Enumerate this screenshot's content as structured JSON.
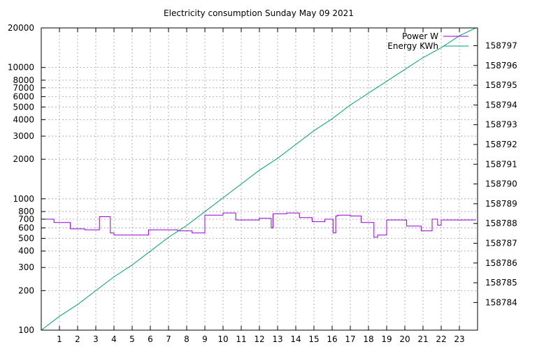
{
  "chart_data": {
    "type": "line",
    "title": "Electricity consumption Sunday May 09 2021",
    "x_ticks": [
      "1",
      "2",
      "3",
      "4",
      "5",
      "6",
      "7",
      "8",
      "9",
      "10",
      "11",
      "12",
      "13",
      "14",
      "15",
      "16",
      "17",
      "18",
      "19",
      "20",
      "21",
      "22",
      "23"
    ],
    "xlim": [
      0,
      24
    ],
    "y_left": {
      "scale": "log",
      "lim": [
        100,
        20000
      ],
      "tick_labels": [
        "100",
        "200",
        "300",
        "400",
        "500",
        "600",
        "700",
        "800",
        "1000",
        "2000",
        "3000",
        "4000",
        "5000",
        "6000",
        "7000",
        "8000",
        "10000",
        "20000"
      ]
    },
    "y_right": {
      "scale": "linear",
      "lim": [
        158782.6,
        158797.9
      ],
      "tick_labels": [
        "158784",
        "158785",
        "158786",
        "158787",
        "158788",
        "158789",
        "158790",
        "158791",
        "158792",
        "158793",
        "158794",
        "158795",
        "158796",
        "158797"
      ]
    },
    "grid": true,
    "legend_position": "top-right",
    "colors": {
      "power": "#9400d3",
      "energy": "#009e73"
    },
    "series": [
      {
        "name": "Power W",
        "axis": "left",
        "step": true,
        "x": [
          0,
          0.7,
          0.7,
          1.6,
          1.6,
          2.4,
          2.4,
          3.2,
          3.2,
          3.8,
          3.8,
          4.0,
          4.0,
          5.9,
          5.9,
          7.5,
          7.5,
          8.3,
          8.3,
          9.0,
          9.0,
          9.4,
          9.4,
          10.0,
          10.0,
          10.7,
          10.7,
          12.0,
          12.0,
          12.65,
          12.65,
          12.75,
          12.75,
          12.8,
          12.8,
          13.5,
          13.5,
          14.2,
          14.2,
          14.9,
          14.9,
          15.6,
          15.6,
          16.05,
          16.05,
          16.2,
          16.2,
          16.3,
          16.3,
          17.0,
          17.0,
          17.6,
          17.6,
          18.3,
          18.3,
          18.5,
          18.5,
          19.0,
          19.0,
          20.1,
          20.1,
          20.9,
          20.9,
          21.5,
          21.5,
          21.8,
          21.8,
          22.0,
          22.0,
          22.7,
          22.7,
          23.9
        ],
        "y": [
          700,
          700,
          660,
          660,
          590,
          590,
          580,
          580,
          730,
          730,
          550,
          550,
          530,
          530,
          580,
          580,
          570,
          570,
          550,
          550,
          750,
          750,
          750,
          750,
          780,
          780,
          690,
          690,
          710,
          710,
          600,
          600,
          770,
          770,
          770,
          770,
          780,
          780,
          720,
          720,
          670,
          670,
          700,
          700,
          550,
          550,
          740,
          740,
          750,
          750,
          740,
          740,
          660,
          660,
          510,
          510,
          530,
          530,
          690,
          690,
          620,
          620,
          570,
          570,
          700,
          700,
          630,
          630,
          690,
          690,
          690,
          690
        ]
      },
      {
        "name": "Energy KWh",
        "axis": "right",
        "x": [
          0,
          1,
          2,
          3,
          4,
          5,
          6,
          7,
          8,
          9,
          10,
          11,
          12,
          13,
          14,
          15,
          16,
          17,
          18,
          19,
          20,
          21,
          22,
          23,
          23.9
        ],
        "y": [
          158782.6,
          158783.3,
          158783.9,
          158784.6,
          158785.3,
          158785.9,
          158786.6,
          158787.3,
          158787.9,
          158788.6,
          158789.3,
          158790.0,
          158790.7,
          158791.3,
          158792.0,
          158792.7,
          158793.3,
          158794.0,
          158794.6,
          158795.2,
          158795.8,
          158796.4,
          158796.9,
          158797.5,
          158797.9
        ]
      }
    ]
  }
}
